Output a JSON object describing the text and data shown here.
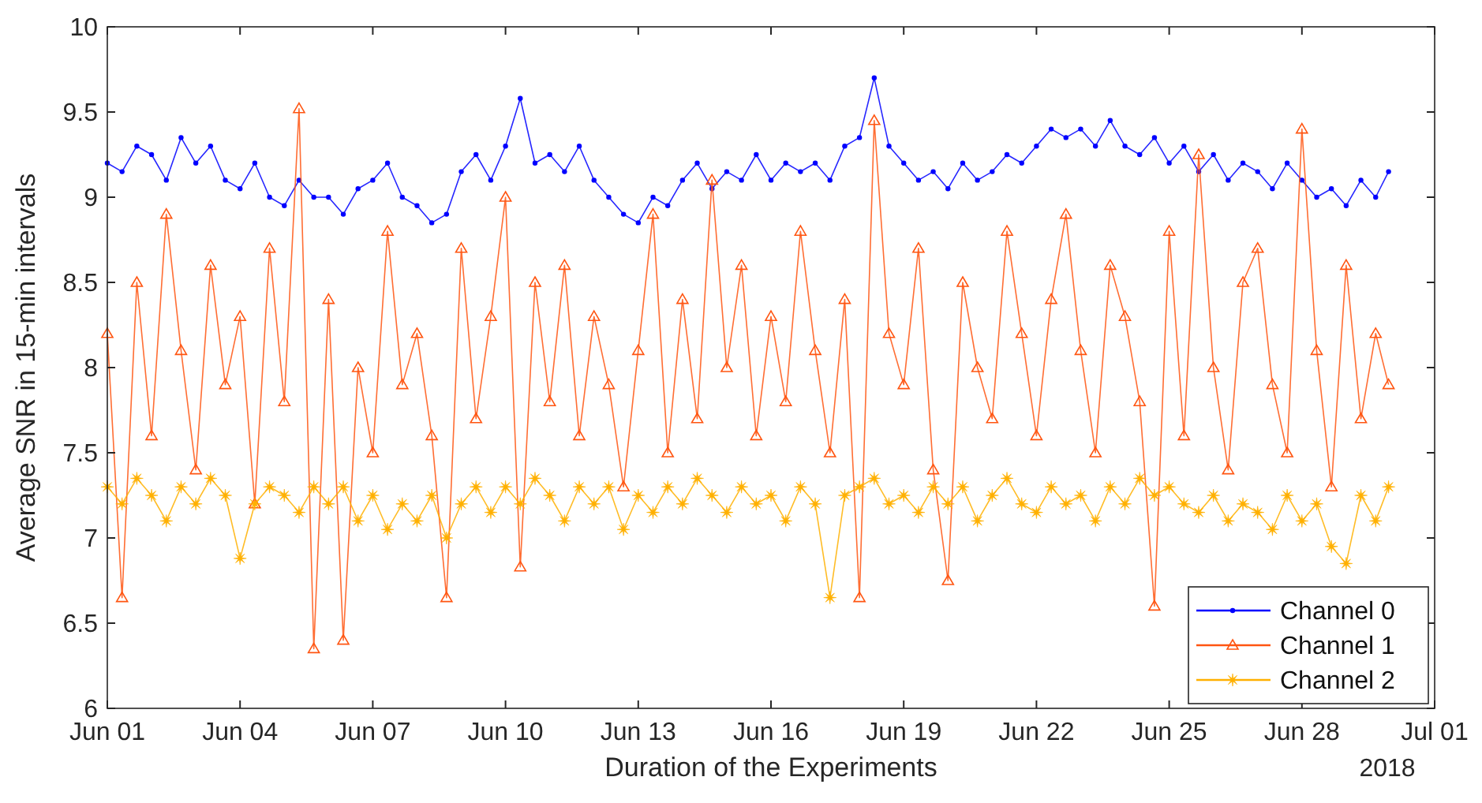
{
  "chart_data": {
    "type": "line",
    "xlabel": "Duration of the Experiments",
    "ylabel": "Average SNR in 15-min intervals",
    "annotations": [
      "2018"
    ],
    "x": [
      "2018-06-01T00:00",
      "2018-06-01T08:00",
      "2018-06-01T16:00",
      "2018-06-02T00:00",
      "2018-06-02T08:00",
      "2018-06-02T16:00",
      "2018-06-03T00:00",
      "2018-06-03T08:00",
      "2018-06-03T16:00",
      "2018-06-04T00:00",
      "2018-06-04T08:00",
      "2018-06-04T16:00",
      "2018-06-05T00:00",
      "2018-06-05T08:00",
      "2018-06-05T16:00",
      "2018-06-06T00:00",
      "2018-06-06T08:00",
      "2018-06-06T16:00",
      "2018-06-07T00:00",
      "2018-06-07T08:00",
      "2018-06-07T16:00",
      "2018-06-08T00:00",
      "2018-06-08T08:00",
      "2018-06-08T16:00",
      "2018-06-09T00:00",
      "2018-06-09T08:00",
      "2018-06-09T16:00",
      "2018-06-10T00:00",
      "2018-06-10T08:00",
      "2018-06-10T16:00",
      "2018-06-11T00:00",
      "2018-06-11T08:00",
      "2018-06-11T16:00",
      "2018-06-12T00:00",
      "2018-06-12T08:00",
      "2018-06-12T16:00",
      "2018-06-13T00:00",
      "2018-06-13T08:00",
      "2018-06-13T16:00",
      "2018-06-14T00:00",
      "2018-06-14T08:00",
      "2018-06-14T16:00",
      "2018-06-15T00:00",
      "2018-06-15T08:00",
      "2018-06-15T16:00",
      "2018-06-16T00:00",
      "2018-06-16T08:00",
      "2018-06-16T16:00",
      "2018-06-17T00:00",
      "2018-06-17T08:00",
      "2018-06-17T16:00",
      "2018-06-18T00:00",
      "2018-06-18T08:00",
      "2018-06-18T16:00",
      "2018-06-19T00:00",
      "2018-06-19T08:00",
      "2018-06-19T16:00",
      "2018-06-20T00:00",
      "2018-06-20T08:00",
      "2018-06-20T16:00",
      "2018-06-21T00:00",
      "2018-06-21T08:00",
      "2018-06-21T16:00",
      "2018-06-22T00:00",
      "2018-06-22T08:00",
      "2018-06-22T16:00",
      "2018-06-23T00:00",
      "2018-06-23T08:00",
      "2018-06-23T16:00",
      "2018-06-24T00:00",
      "2018-06-24T08:00",
      "2018-06-24T16:00",
      "2018-06-25T00:00",
      "2018-06-25T08:00",
      "2018-06-25T16:00",
      "2018-06-26T00:00",
      "2018-06-26T08:00",
      "2018-06-26T16:00",
      "2018-06-27T00:00",
      "2018-06-27T08:00",
      "2018-06-27T16:00",
      "2018-06-28T00:00",
      "2018-06-28T08:00",
      "2018-06-28T16:00",
      "2018-06-29T00:00",
      "2018-06-29T08:00",
      "2018-06-29T16:00",
      "2018-06-29T23:00"
    ],
    "series": [
      {
        "name": "Channel 0",
        "color": "#0000ff",
        "marker": "circle",
        "values": [
          9.2,
          9.15,
          9.3,
          9.25,
          9.1,
          9.35,
          9.2,
          9.3,
          9.1,
          9.05,
          9.2,
          9.0,
          8.95,
          9.1,
          9.0,
          9.0,
          8.9,
          9.05,
          9.1,
          9.2,
          9.0,
          8.95,
          8.85,
          8.9,
          9.15,
          9.25,
          9.1,
          9.3,
          9.58,
          9.2,
          9.25,
          9.15,
          9.3,
          9.1,
          9.0,
          8.9,
          8.85,
          9.0,
          8.95,
          9.1,
          9.2,
          9.05,
          9.15,
          9.1,
          9.25,
          9.1,
          9.2,
          9.15,
          9.2,
          9.1,
          9.3,
          9.35,
          9.7,
          9.3,
          9.2,
          9.1,
          9.15,
          9.05,
          9.2,
          9.1,
          9.15,
          9.25,
          9.2,
          9.3,
          9.4,
          9.35,
          9.4,
          9.3,
          9.45,
          9.3,
          9.25,
          9.35,
          9.2,
          9.3,
          9.15,
          9.25,
          9.1,
          9.2,
          9.15,
          9.05,
          9.2,
          9.1,
          9.0,
          9.05,
          8.95,
          9.1,
          9.0,
          9.15
        ]
      },
      {
        "name": "Channel 1",
        "color": "#ff5511",
        "marker": "triangle",
        "values": [
          8.2,
          6.65,
          8.5,
          7.6,
          8.9,
          8.1,
          7.4,
          8.6,
          7.9,
          8.3,
          7.2,
          8.7,
          7.8,
          9.52,
          6.35,
          8.4,
          6.4,
          8.0,
          7.5,
          8.8,
          7.9,
          8.2,
          7.6,
          6.65,
          8.7,
          7.7,
          8.3,
          9.0,
          6.83,
          8.5,
          7.8,
          8.6,
          7.6,
          8.3,
          7.9,
          7.3,
          8.1,
          8.9,
          7.5,
          8.4,
          7.7,
          9.1,
          8.0,
          8.6,
          7.6,
          8.3,
          7.8,
          8.8,
          8.1,
          7.5,
          8.4,
          6.65,
          9.45,
          8.2,
          7.9,
          8.7,
          7.4,
          6.75,
          8.5,
          8.0,
          7.7,
          8.8,
          8.2,
          7.6,
          8.4,
          8.9,
          8.1,
          7.5,
          8.6,
          8.3,
          7.8,
          6.6,
          8.8,
          7.6,
          9.25,
          8.0,
          7.4,
          8.5,
          8.7,
          7.9,
          7.5,
          9.4,
          8.1,
          7.3,
          8.6,
          7.7,
          8.2,
          7.9
        ]
      },
      {
        "name": "Channel 2",
        "color": "#ffb000",
        "marker": "star",
        "values": [
          7.3,
          7.2,
          7.35,
          7.25,
          7.1,
          7.3,
          7.2,
          7.35,
          7.25,
          6.88,
          7.2,
          7.3,
          7.25,
          7.15,
          7.3,
          7.2,
          7.3,
          7.1,
          7.25,
          7.05,
          7.2,
          7.1,
          7.25,
          7.0,
          7.2,
          7.3,
          7.15,
          7.3,
          7.2,
          7.35,
          7.25,
          7.1,
          7.3,
          7.2,
          7.3,
          7.05,
          7.25,
          7.15,
          7.3,
          7.2,
          7.35,
          7.25,
          7.15,
          7.3,
          7.2,
          7.25,
          7.1,
          7.3,
          7.2,
          6.65,
          7.25,
          7.3,
          7.35,
          7.2,
          7.25,
          7.15,
          7.3,
          7.2,
          7.3,
          7.1,
          7.25,
          7.35,
          7.2,
          7.15,
          7.3,
          7.2,
          7.25,
          7.1,
          7.3,
          7.2,
          7.35,
          7.25,
          7.3,
          7.2,
          7.15,
          7.25,
          7.1,
          7.2,
          7.15,
          7.05,
          7.25,
          7.1,
          7.2,
          6.95,
          6.85,
          7.25,
          7.1,
          7.3
        ]
      }
    ],
    "xlim": [
      "2018-06-01",
      "2018-07-01"
    ],
    "xticks": [
      {
        "value": "2018-06-01",
        "label": "Jun 01"
      },
      {
        "value": "2018-06-04",
        "label": "Jun 04"
      },
      {
        "value": "2018-06-07",
        "label": "Jun 07"
      },
      {
        "value": "2018-06-10",
        "label": "Jun 10"
      },
      {
        "value": "2018-06-13",
        "label": "Jun 13"
      },
      {
        "value": "2018-06-16",
        "label": "Jun 16"
      },
      {
        "value": "2018-06-19",
        "label": "Jun 19"
      },
      {
        "value": "2018-06-22",
        "label": "Jun 22"
      },
      {
        "value": "2018-06-25",
        "label": "Jun 25"
      },
      {
        "value": "2018-06-28",
        "label": "Jun 28"
      },
      {
        "value": "2018-07-01",
        "label": "Jul 01"
      }
    ],
    "ylim": [
      6,
      10
    ],
    "yticks": [
      6,
      6.5,
      7,
      7.5,
      8,
      8.5,
      9,
      9.5,
      10
    ],
    "legend": "bottom right",
    "line_style": "solid"
  }
}
